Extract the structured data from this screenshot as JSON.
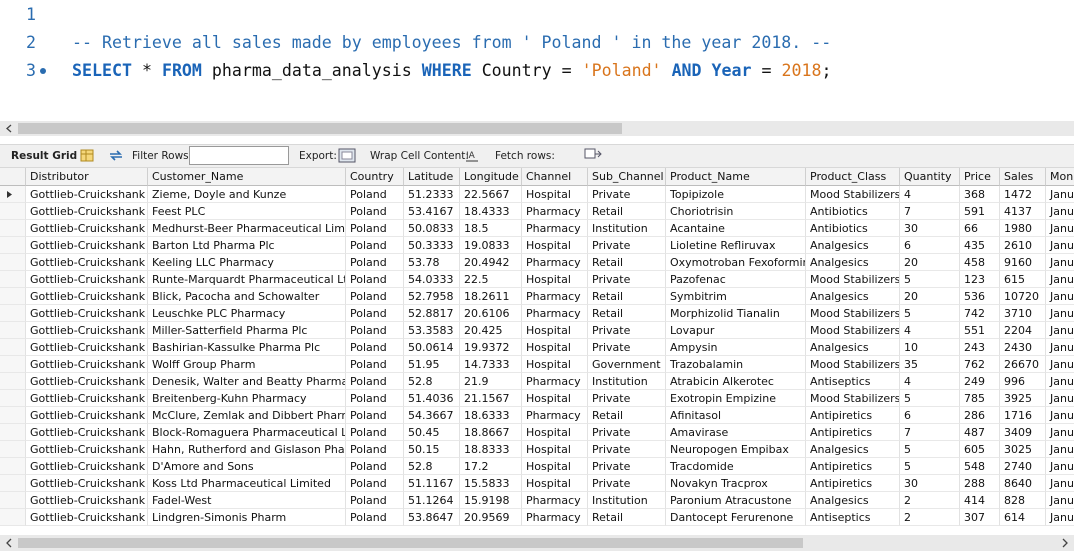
{
  "editor": {
    "line_numbers": [
      "1",
      "2",
      "3"
    ],
    "comment": "-- Retrieve all sales made by employees from ' Poland ' in the year 2018. --",
    "query": [
      {
        "text": "SELECT",
        "kind": "keyword"
      },
      {
        "text": "*",
        "kind": "operator"
      },
      {
        "text": "FROM",
        "kind": "keyword"
      },
      {
        "text": "pharma_data_analysis",
        "kind": "identifier"
      },
      {
        "text": "WHERE",
        "kind": "keyword"
      },
      {
        "text": "Country",
        "kind": "identifier"
      },
      {
        "text": "=",
        "kind": "operator"
      },
      {
        "text": "'Poland'",
        "kind": "string"
      },
      {
        "text": "AND",
        "kind": "keyword"
      },
      {
        "text": "Year",
        "kind": "keyword"
      },
      {
        "text": "=",
        "kind": "operator"
      },
      {
        "text": "2018",
        "kind": "number"
      },
      {
        "text": ";",
        "kind": "terminator"
      }
    ]
  },
  "toolbar": {
    "result_grid": "Result Grid",
    "filter_rows": "Filter Rows:",
    "export": "Export:",
    "wrap_cell": "Wrap Cell Content:",
    "fetch_rows": "Fetch rows:"
  },
  "table": {
    "columns": [
      "Distributor",
      "Customer_Name",
      "Country",
      "Latitude",
      "Longitude",
      "Channel",
      "Sub_Channel",
      "Product_Name",
      "Product_Class",
      "Quantity",
      "Price",
      "Sales",
      "Mon"
    ],
    "rows": [
      [
        "Gottlieb-Cruickshank",
        "Zieme, Doyle and Kunze",
        "Poland",
        51.2333,
        22.5667,
        "Hospital",
        "Private",
        "Topipizole",
        "Mood Stabilizers",
        4,
        368,
        1472,
        "Janu"
      ],
      [
        "Gottlieb-Cruickshank",
        "Feest PLC",
        "Poland",
        53.4167,
        18.4333,
        "Pharmacy",
        "Retail",
        "Choriotrisin",
        "Antibiotics",
        7,
        591,
        4137,
        "Janu"
      ],
      [
        "Gottlieb-Cruickshank",
        "Medhurst-Beer Pharmaceutical Limited",
        "Poland",
        50.0833,
        18.5,
        "Pharmacy",
        "Institution",
        "Acantaine",
        "Antibiotics",
        30,
        66,
        1980,
        "Janu"
      ],
      [
        "Gottlieb-Cruickshank",
        "Barton Ltd Pharma Plc",
        "Poland",
        50.3333,
        19.0833,
        "Hospital",
        "Private",
        "Lioletine Refliruvax",
        "Analgesics",
        6,
        435,
        2610,
        "Janu"
      ],
      [
        "Gottlieb-Cruickshank",
        "Keeling LLC Pharmacy",
        "Poland",
        53.78,
        20.4942,
        "Pharmacy",
        "Retail",
        "Oxymotroban Fexoformin",
        "Analgesics",
        20,
        458,
        9160,
        "Janu"
      ],
      [
        "Gottlieb-Cruickshank",
        "Runte-Marquardt Pharmaceutical Ltd",
        "Poland",
        54.0333,
        22.5,
        "Hospital",
        "Private",
        "Pazofenac",
        "Mood Stabilizers",
        5,
        123,
        615,
        "Janu"
      ],
      [
        "Gottlieb-Cruickshank",
        "Blick, Pacocha and Schowalter",
        "Poland",
        52.7958,
        18.2611,
        "Pharmacy",
        "Retail",
        "Symbitrim",
        "Analgesics",
        20,
        536,
        10720,
        "Janu"
      ],
      [
        "Gottlieb-Cruickshank",
        "Leuschke PLC Pharmacy",
        "Poland",
        52.8817,
        20.6106,
        "Pharmacy",
        "Retail",
        "Morphizolid Tianalin",
        "Mood Stabilizers",
        5,
        742,
        3710,
        "Janu"
      ],
      [
        "Gottlieb-Cruickshank",
        "Miller-Satterfield Pharma Plc",
        "Poland",
        53.3583,
        20.425,
        "Hospital",
        "Private",
        "Lovapur",
        "Mood Stabilizers",
        4,
        551,
        2204,
        "Janu"
      ],
      [
        "Gottlieb-Cruickshank",
        "Bashirian-Kassulke Pharma Plc",
        "Poland",
        50.0614,
        19.9372,
        "Hospital",
        "Private",
        "Ampysin",
        "Analgesics",
        10,
        243,
        2430,
        "Janu"
      ],
      [
        "Gottlieb-Cruickshank",
        "Wolff Group Pharm",
        "Poland",
        51.95,
        14.7333,
        "Hospital",
        "Government",
        "Trazobalamin",
        "Mood Stabilizers",
        35,
        762,
        26670,
        "Janu"
      ],
      [
        "Gottlieb-Cruickshank",
        "Denesik, Walter and Beatty Pharma Plc",
        "Poland",
        52.8,
        21.9,
        "Pharmacy",
        "Institution",
        "Atrabicin Alkerotec",
        "Antiseptics",
        4,
        249,
        996,
        "Janu"
      ],
      [
        "Gottlieb-Cruickshank",
        "Breitenberg-Kuhn Pharmacy",
        "Poland",
        51.4036,
        21.1567,
        "Hospital",
        "Private",
        "Exotropin Empizine",
        "Mood Stabilizers",
        5,
        785,
        3925,
        "Janu"
      ],
      [
        "Gottlieb-Cruickshank",
        "McClure, Zemlak and Dibbert Pharma ...",
        "Poland",
        54.3667,
        18.6333,
        "Pharmacy",
        "Retail",
        "Afinitasol",
        "Antipiretics",
        6,
        286,
        1716,
        "Janu"
      ],
      [
        "Gottlieb-Cruickshank",
        "Block-Romaguera Pharmaceutical Limi...",
        "Poland",
        50.45,
        18.8667,
        "Hospital",
        "Private",
        "Amavirase",
        "Antipiretics",
        7,
        487,
        3409,
        "Janu"
      ],
      [
        "Gottlieb-Cruickshank",
        "Hahn, Rutherford and Gislason Phar...",
        "Poland",
        50.15,
        18.8333,
        "Hospital",
        "Private",
        "Neuropogen Empibax",
        "Analgesics",
        5,
        605,
        3025,
        "Janu"
      ],
      [
        "Gottlieb-Cruickshank",
        "D'Amore and Sons",
        "Poland",
        52.8,
        17.2,
        "Hospital",
        "Private",
        "Tracdomide",
        "Antipiretics",
        5,
        548,
        2740,
        "Janu"
      ],
      [
        "Gottlieb-Cruickshank",
        "Koss Ltd Pharmaceutical Limited",
        "Poland",
        51.1167,
        15.5833,
        "Hospital",
        "Private",
        "Novakyn Tracprox",
        "Antipiretics",
        30,
        288,
        8640,
        "Janu"
      ],
      [
        "Gottlieb-Cruickshank",
        "Fadel-West",
        "Poland",
        51.1264,
        15.9198,
        "Pharmacy",
        "Institution",
        "Paronium Atracustone",
        "Analgesics",
        2,
        414,
        828,
        "Janu"
      ],
      [
        "Gottlieb-Cruickshank",
        "Lindgren-Simonis Pharm",
        "Poland",
        53.8647,
        20.9569,
        "Pharmacy",
        "Retail",
        "Dantocept Ferurenone",
        "Antiseptics",
        2,
        307,
        614,
        "Janu"
      ]
    ]
  }
}
